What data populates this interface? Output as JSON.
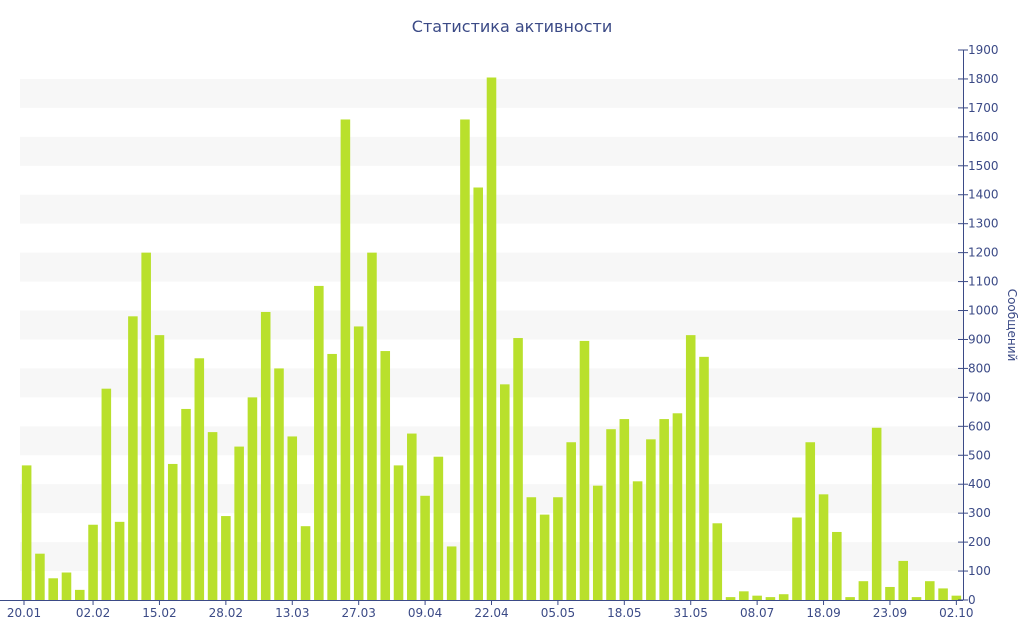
{
  "chart_data": {
    "type": "bar",
    "title": "Статистика активности",
    "xlabel": "",
    "ylabel": "Сообщений",
    "ylim": [
      0,
      1900
    ],
    "y_ticks": [
      0,
      100,
      200,
      300,
      400,
      500,
      600,
      700,
      800,
      900,
      1000,
      1100,
      1200,
      1300,
      1400,
      1500,
      1600,
      1700,
      1800,
      1900
    ],
    "x_ticks": [
      {
        "label": "20.01",
        "index": 0
      },
      {
        "label": "02.02",
        "index": 5
      },
      {
        "label": "15.02",
        "index": 10
      },
      {
        "label": "28.02",
        "index": 15
      },
      {
        "label": "13.03",
        "index": 20
      },
      {
        "label": "27.03",
        "index": 25
      },
      {
        "label": "09.04",
        "index": 30
      },
      {
        "label": "22.04",
        "index": 35
      },
      {
        "label": "05.05",
        "index": 40
      },
      {
        "label": "18.05",
        "index": 45
      },
      {
        "label": "31.05",
        "index": 50
      },
      {
        "label": "08.07",
        "index": 55
      },
      {
        "label": "18.09",
        "index": 60
      },
      {
        "label": "23.09",
        "index": 65
      },
      {
        "label": "02.10",
        "index": 70
      }
    ],
    "values": [
      465,
      160,
      75,
      95,
      35,
      260,
      730,
      270,
      980,
      1200,
      915,
      470,
      660,
      835,
      580,
      290,
      530,
      700,
      995,
      800,
      565,
      255,
      1085,
      850,
      1660,
      945,
      1200,
      860,
      465,
      575,
      360,
      495,
      185,
      1660,
      1425,
      1805,
      745,
      905,
      355,
      295,
      355,
      545,
      895,
      395,
      590,
      625,
      410,
      555,
      625,
      645,
      915,
      840,
      265,
      10,
      30,
      15,
      10,
      20,
      285,
      545,
      365,
      235,
      10,
      65,
      595,
      45,
      135,
      10,
      65,
      40,
      15
    ],
    "grid": true,
    "y_axis_position": "right",
    "bar_color": "#b9e02c",
    "band_color": "#f7f7f7",
    "text_color": "#3b4a86"
  }
}
